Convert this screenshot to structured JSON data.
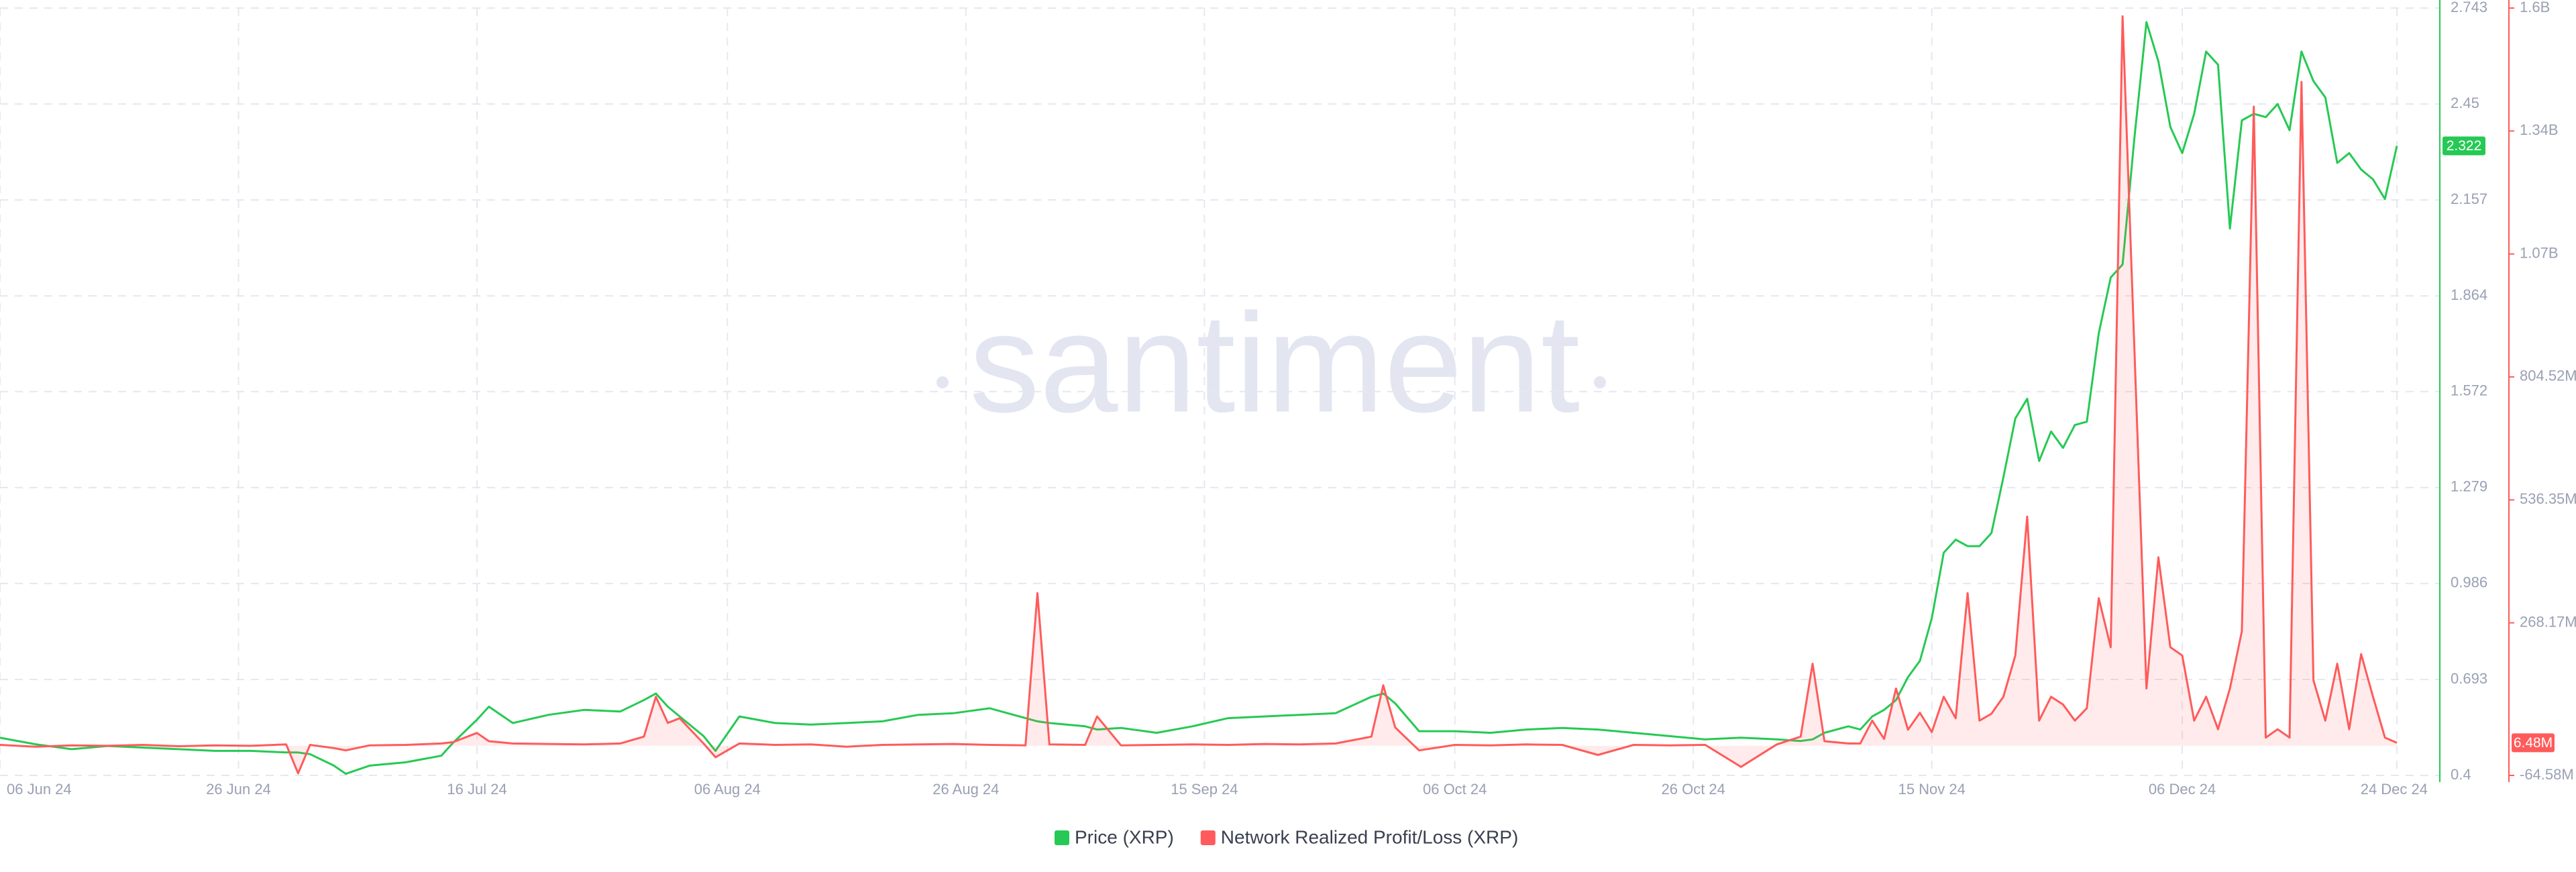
{
  "chart_data": {
    "type": "line",
    "watermark": "santiment",
    "x": [
      "2024-06-06",
      "2024-06-09",
      "2024-06-12",
      "2024-06-15",
      "2024-06-18",
      "2024-06-21",
      "2024-06-24",
      "2024-06-27",
      "2024-06-30",
      "2024-07-01",
      "2024-07-02",
      "2024-07-04",
      "2024-07-05",
      "2024-07-07",
      "2024-07-10",
      "2024-07-13",
      "2024-07-14",
      "2024-07-16",
      "2024-07-17",
      "2024-07-19",
      "2024-07-22",
      "2024-07-25",
      "2024-07-28",
      "2024-07-30",
      "2024-07-31",
      "2024-08-01",
      "2024-08-02",
      "2024-08-04",
      "2024-08-05",
      "2024-08-07",
      "2024-08-10",
      "2024-08-13",
      "2024-08-16",
      "2024-08-19",
      "2024-08-22",
      "2024-08-25",
      "2024-08-28",
      "2024-08-31",
      "2024-09-01",
      "2024-09-02",
      "2024-09-05",
      "2024-09-06",
      "2024-09-08",
      "2024-09-11",
      "2024-09-14",
      "2024-09-17",
      "2024-09-20",
      "2024-09-23",
      "2024-09-26",
      "2024-09-29",
      "2024-09-30",
      "2024-10-01",
      "2024-10-03",
      "2024-10-06",
      "2024-10-09",
      "2024-10-12",
      "2024-10-15",
      "2024-10-18",
      "2024-10-21",
      "2024-10-24",
      "2024-10-27",
      "2024-10-30",
      "2024-11-02",
      "2024-11-04",
      "2024-11-05",
      "2024-11-06",
      "2024-11-08",
      "2024-11-09",
      "2024-11-10",
      "2024-11-11",
      "2024-11-12",
      "2024-11-13",
      "2024-11-14",
      "2024-11-15",
      "2024-11-16",
      "2024-11-17",
      "2024-11-18",
      "2024-11-19",
      "2024-11-20",
      "2024-11-21",
      "2024-11-22",
      "2024-11-23",
      "2024-11-24",
      "2024-11-25",
      "2024-11-26",
      "2024-11-27",
      "2024-11-28",
      "2024-11-29",
      "2024-11-30",
      "2024-12-01",
      "2024-12-02",
      "2024-12-03",
      "2024-12-04",
      "2024-12-05",
      "2024-12-06",
      "2024-12-07",
      "2024-12-08",
      "2024-12-09",
      "2024-12-10",
      "2024-12-11",
      "2024-12-12",
      "2024-12-13",
      "2024-12-14",
      "2024-12-15",
      "2024-12-16",
      "2024-12-17",
      "2024-12-18",
      "2024-12-19",
      "2024-12-20",
      "2024-12-21",
      "2024-12-22",
      "2024-12-23",
      "2024-12-24"
    ],
    "series": [
      {
        "name": "Price (XRP)",
        "color": "#26c953",
        "axis": "y",
        "values": [
          0.515,
          0.495,
          0.48,
          0.49,
          0.485,
          0.48,
          0.475,
          0.475,
          0.47,
          0.47,
          0.465,
          0.43,
          0.405,
          0.43,
          0.44,
          0.46,
          0.5,
          0.57,
          0.61,
          0.56,
          0.585,
          0.6,
          0.595,
          0.63,
          0.65,
          0.61,
          0.58,
          0.52,
          0.475,
          0.58,
          0.56,
          0.555,
          0.56,
          0.565,
          0.585,
          0.59,
          0.605,
          0.575,
          0.565,
          0.56,
          0.55,
          0.54,
          0.545,
          0.53,
          0.55,
          0.575,
          0.58,
          0.585,
          0.59,
          0.64,
          0.65,
          0.62,
          0.535,
          0.535,
          0.53,
          0.54,
          0.545,
          0.54,
          0.53,
          0.52,
          0.51,
          0.515,
          0.51,
          0.505,
          0.51,
          0.53,
          0.55,
          0.54,
          0.58,
          0.6,
          0.63,
          0.7,
          0.75,
          0.88,
          1.08,
          1.12,
          1.1,
          1.1,
          1.14,
          1.31,
          1.49,
          1.55,
          1.36,
          1.45,
          1.4,
          1.47,
          1.48,
          1.75,
          1.92,
          1.96,
          2.35,
          2.7,
          2.58,
          2.38,
          2.3,
          2.42,
          2.61,
          2.57,
          2.07,
          2.4,
          2.42,
          2.41,
          2.45,
          2.37,
          2.61,
          2.52,
          2.47,
          2.27,
          2.3,
          2.25,
          2.22,
          2.16,
          2.322
        ]
      },
      {
        "name": "Network Realized Profit/Loss (XRP)",
        "color": "#ff5b5b",
        "axis": "y2",
        "value_label": "6.48M",
        "values": [
          2000000,
          -2000000,
          1000000,
          0,
          2000000,
          -1000000,
          1000000,
          0,
          3000000,
          -60000000,
          2000000,
          -5000000,
          -10000000,
          1000000,
          2000000,
          5000000,
          8000000,
          28000000,
          10000000,
          5000000,
          4000000,
          3000000,
          5000000,
          20000000,
          107000000,
          50000000,
          60000000,
          5000000,
          -25000000,
          5000000,
          2000000,
          3000000,
          -2000000,
          2000000,
          3000000,
          4000000,
          2000000,
          1000000,
          333000000,
          3000000,
          2000000,
          64000000,
          1000000,
          2000000,
          3000000,
          2000000,
          4000000,
          3000000,
          5000000,
          20000000,
          132000000,
          40000000,
          -10000000,
          2000000,
          1000000,
          3000000,
          2000000,
          -20000000,
          2000000,
          1000000,
          2000000,
          -46000000,
          3000000,
          20000000,
          179000000,
          10000000,
          5000000,
          5000000,
          55000000,
          15000000,
          125000000,
          35000000,
          72000000,
          30000000,
          107000000,
          60000000,
          333000000,
          55000000,
          70000000,
          107000000,
          197000000,
          500000000,
          55000000,
          107000000,
          90000000,
          55000000,
          82000000,
          322000000,
          215000000,
          1591000000,
          858000000,
          125000000,
          411000000,
          215000000,
          197000000,
          55000000,
          107000000,
          36000000,
          125000000,
          250000000,
          1394000000,
          18000000,
          36000000,
          18000000,
          1448000000,
          143000000,
          55000000,
          179000000,
          36000000,
          200000000,
          107000000,
          18000000,
          6480000
        ]
      }
    ],
    "ylim": [
      0.4,
      2.743
    ],
    "yticks": [
      0.4,
      0.693,
      0.986,
      1.279,
      1.572,
      1.864,
      2.157,
      2.45,
      2.743
    ],
    "y2lim": [
      -64580000,
      1609040000
    ],
    "y2ticks": [
      {
        "value": -64580000,
        "label": "-64.58M"
      },
      {
        "value": 268170000,
        "label": "268.17M"
      },
      {
        "value": 536350000,
        "label": "536.35M"
      },
      {
        "value": 804520000,
        "label": "804.52M"
      },
      {
        "value": 1072690000,
        "label": "1.07B"
      },
      {
        "value": 1340870000,
        "label": "1.34B"
      },
      {
        "value": 1609040000,
        "label": "1.6B"
      }
    ],
    "xticks": [
      {
        "value": "2024-06-06",
        "label": "06 Jun 24"
      },
      {
        "value": "2024-06-26",
        "label": "26 Jun 24"
      },
      {
        "value": "2024-07-16",
        "label": "16 Jul 24"
      },
      {
        "value": "2024-08-06",
        "label": "06 Aug 24"
      },
      {
        "value": "2024-08-26",
        "label": "26 Aug 24"
      },
      {
        "value": "2024-09-15",
        "label": "15 Sep 24"
      },
      {
        "value": "2024-10-06",
        "label": "06 Oct 24"
      },
      {
        "value": "2024-10-26",
        "label": "26 Oct 24"
      },
      {
        "value": "2024-11-15",
        "label": "15 Nov 24"
      },
      {
        "value": "2024-12-06",
        "label": "06 Dec 24"
      },
      {
        "value": "2024-12-24",
        "label": "24 Dec 24"
      }
    ],
    "grid": true,
    "legend": "bottom"
  }
}
